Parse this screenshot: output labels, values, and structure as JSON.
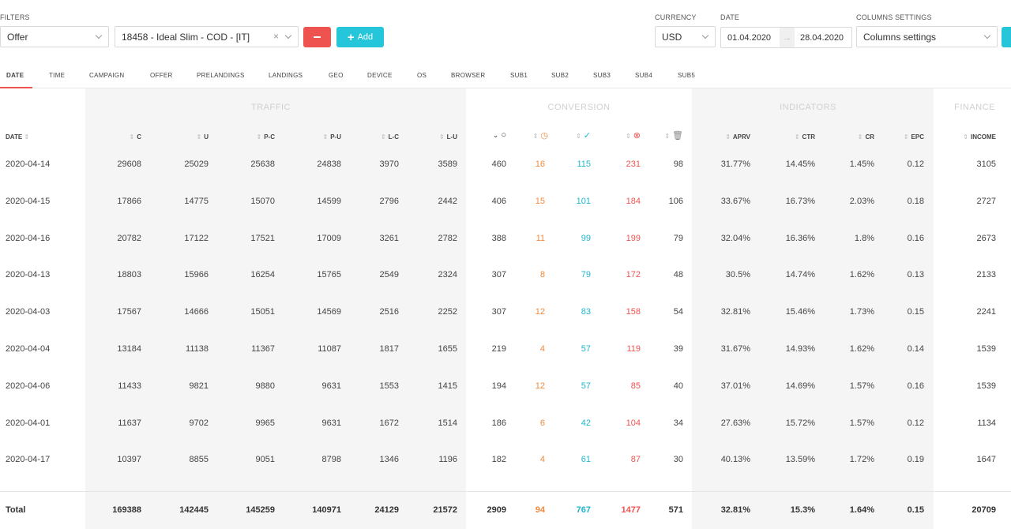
{
  "filters": {
    "label": "FILTERS",
    "filter_type": "Offer",
    "filter_value": "18458 - Ideal Slim - COD - [IT]",
    "clear_glyph": "×",
    "remove_icon": "minus-icon",
    "add_label": "Add",
    "add_icon": "plus-icon"
  },
  "currency": {
    "label": "CURRENCY",
    "value": "USD"
  },
  "date": {
    "label": "DATE",
    "from": "01.04.2020",
    "arrow": "→",
    "to": "28.04.2020"
  },
  "columns_settings": {
    "label": "COLUMNS SETTINGS",
    "value": "Columns settings"
  },
  "tabs": [
    "DATE",
    "TIME",
    "CAMPAIGN",
    "OFFER",
    "PRELANDINGS",
    "LANDINGS",
    "GEO",
    "DEVICE",
    "OS",
    "BROWSER",
    "SUB1",
    "SUB2",
    "SUB3",
    "SUB4",
    "SUB5"
  ],
  "active_tab": "DATE",
  "groups": {
    "traffic": "TRAFFIC",
    "conversion": "CONVERSION",
    "indicators": "INDICATORS",
    "finance": "FINANCE"
  },
  "headers": {
    "date": "DATE",
    "c": "C",
    "u": "U",
    "pc": "P-C",
    "pu": "P-U",
    "lc": "L-C",
    "lu": "L-U",
    "aprv": "APRV",
    "ctr": "CTR",
    "cr": "CR",
    "epc": "EPC",
    "income": "INCOME",
    "conv_icons": [
      "circle-icon",
      "clock-icon",
      "check-circle-icon",
      "x-circle-icon",
      "trash-icon"
    ]
  },
  "rows": [
    [
      "2020-04-14",
      "29608",
      "25029",
      "25638",
      "24838",
      "3970",
      "3589",
      "460",
      "16",
      "115",
      "231",
      "98",
      "31.77%",
      "14.45%",
      "1.45%",
      "0.12",
      "3105"
    ],
    [
      "2020-04-15",
      "17866",
      "14775",
      "15070",
      "14599",
      "2796",
      "2442",
      "406",
      "15",
      "101",
      "184",
      "106",
      "33.67%",
      "16.73%",
      "2.03%",
      "0.18",
      "2727"
    ],
    [
      "2020-04-16",
      "20782",
      "17122",
      "17521",
      "17009",
      "3261",
      "2782",
      "388",
      "11",
      "99",
      "199",
      "79",
      "32.04%",
      "16.36%",
      "1.8%",
      "0.16",
      "2673"
    ],
    [
      "2020-04-13",
      "18803",
      "15966",
      "16254",
      "15765",
      "2549",
      "2324",
      "307",
      "8",
      "79",
      "172",
      "48",
      "30.5%",
      "14.74%",
      "1.62%",
      "0.13",
      "2133"
    ],
    [
      "2020-04-03",
      "17567",
      "14666",
      "15051",
      "14569",
      "2516",
      "2252",
      "307",
      "12",
      "83",
      "158",
      "54",
      "32.81%",
      "15.46%",
      "1.73%",
      "0.15",
      "2241"
    ],
    [
      "2020-04-04",
      "13184",
      "11138",
      "11367",
      "11087",
      "1817",
      "1655",
      "219",
      "4",
      "57",
      "119",
      "39",
      "31.67%",
      "14.93%",
      "1.62%",
      "0.14",
      "1539"
    ],
    [
      "2020-04-06",
      "11433",
      "9821",
      "9880",
      "9631",
      "1553",
      "1415",
      "194",
      "12",
      "57",
      "85",
      "40",
      "37.01%",
      "14.69%",
      "1.57%",
      "0.16",
      "1539"
    ],
    [
      "2020-04-01",
      "11637",
      "9702",
      "9965",
      "9631",
      "1672",
      "1514",
      "186",
      "6",
      "42",
      "104",
      "34",
      "27.63%",
      "15.72%",
      "1.57%",
      "0.12",
      "1134"
    ],
    [
      "2020-04-17",
      "10397",
      "8855",
      "9051",
      "8798",
      "1346",
      "1196",
      "182",
      "4",
      "61",
      "87",
      "30",
      "40.13%",
      "13.59%",
      "1.72%",
      "0.19",
      "1647"
    ]
  ],
  "total": [
    "Total",
    "169388",
    "142445",
    "145259",
    "140971",
    "24129",
    "21572",
    "2909",
    "94",
    "767",
    "1477",
    "571",
    "32.81%",
    "15.3%",
    "1.64%",
    "0.15",
    "20709"
  ],
  "colors": {
    "orange": "#f0883a",
    "cyan": "#1fb5cc",
    "red": "#ef5350",
    "accent": "#26c6da"
  }
}
